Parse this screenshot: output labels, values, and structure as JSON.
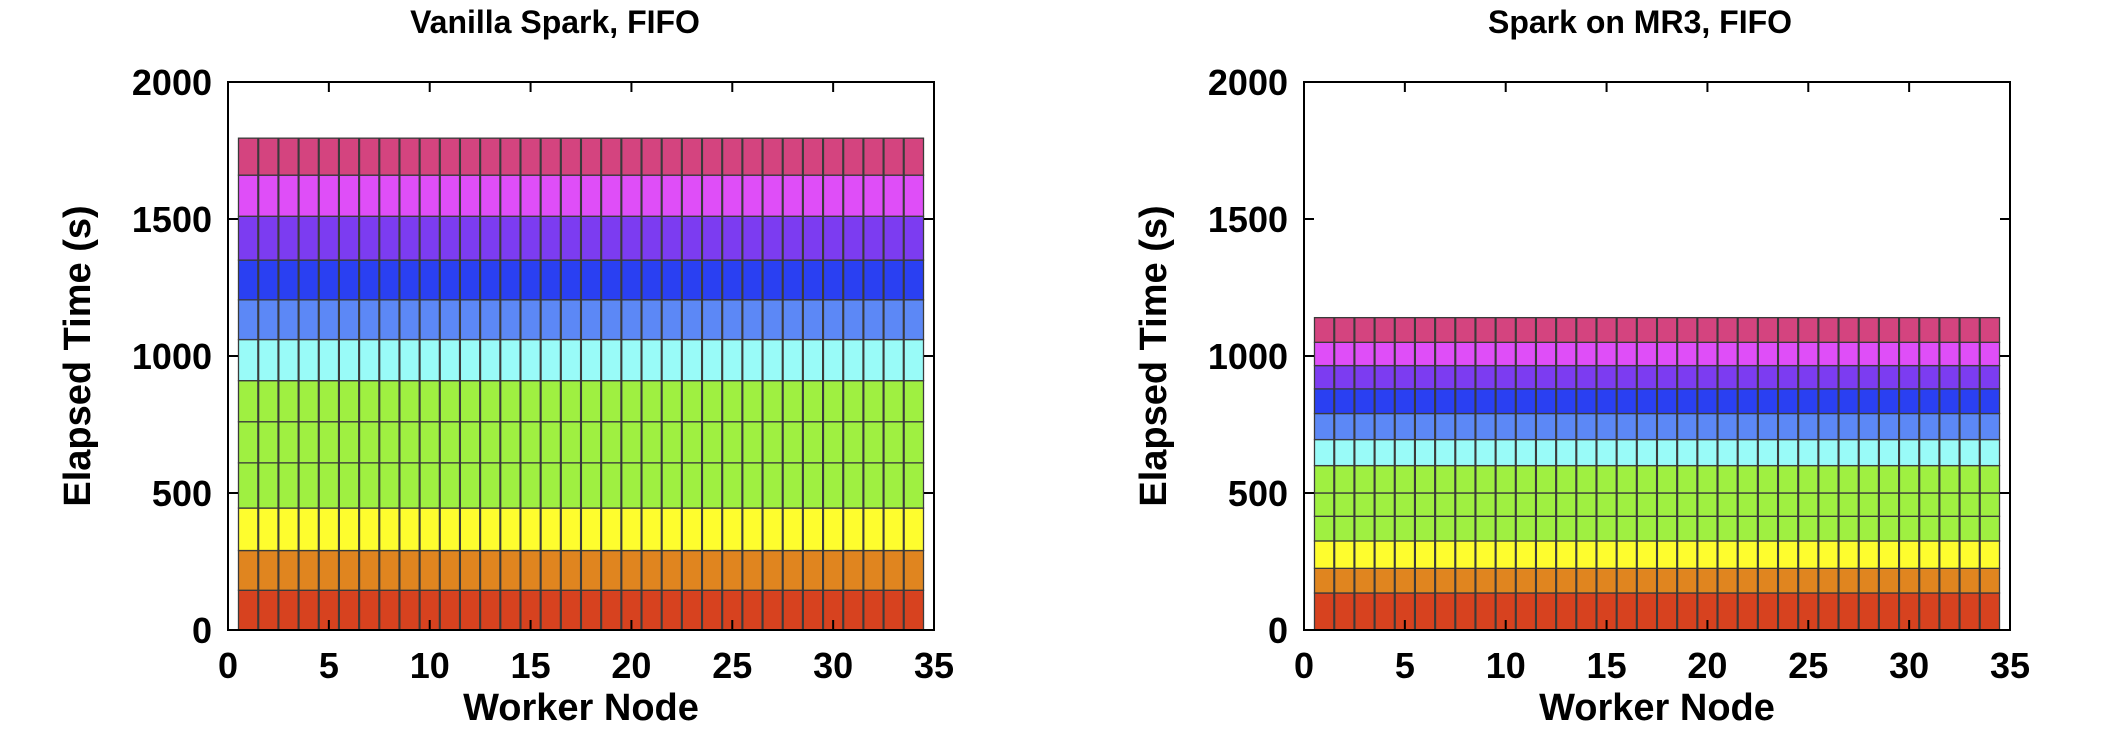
{
  "chart_data": [
    {
      "type": "bar",
      "title": "Vanilla Spark, FIFO",
      "xlabel": "Worker Node",
      "ylabel": "Elapsed Time (s)",
      "xlim": [
        0,
        35
      ],
      "ylim": [
        0,
        2000
      ],
      "x_ticks": [
        0,
        5,
        10,
        15,
        20,
        25,
        30,
        35
      ],
      "y_ticks": [
        0,
        500,
        1000,
        1500,
        2000
      ],
      "grid": false,
      "stacked": true,
      "nodes": [
        1,
        34
      ],
      "boundaries": [
        0,
        145,
        290,
        445,
        610,
        760,
        910,
        1060,
        1205,
        1350,
        1510,
        1660,
        1795
      ],
      "colors": [
        "#d7421f",
        "#e0851f",
        "#fefd2e",
        "#9ff041",
        "#9ff041",
        "#9ff041",
        "#99fbf8",
        "#5c88f6",
        "#2a40f2",
        "#7c3cf1",
        "#df4ef8",
        "#d4447f"
      ]
    },
    {
      "type": "bar",
      "title": "Spark on MR3, FIFO",
      "xlabel": "Worker Node",
      "ylabel": "Elapsed Time (s)",
      "xlim": [
        0,
        35
      ],
      "ylim": [
        0,
        2000
      ],
      "x_ticks": [
        0,
        5,
        10,
        15,
        20,
        25,
        30,
        35
      ],
      "y_ticks": [
        0,
        500,
        1000,
        1500,
        2000
      ],
      "grid": false,
      "stacked": true,
      "nodes": [
        1,
        34
      ],
      "boundaries": [
        0,
        135,
        225,
        325,
        415,
        500,
        600,
        695,
        790,
        880,
        965,
        1050,
        1140
      ],
      "colors": [
        "#d7421f",
        "#e0851f",
        "#fefd2e",
        "#9ff041",
        "#9ff041",
        "#9ff041",
        "#99fbf8",
        "#5c88f6",
        "#2a40f2",
        "#7c3cf1",
        "#df4ef8",
        "#d4447f"
      ]
    }
  ]
}
